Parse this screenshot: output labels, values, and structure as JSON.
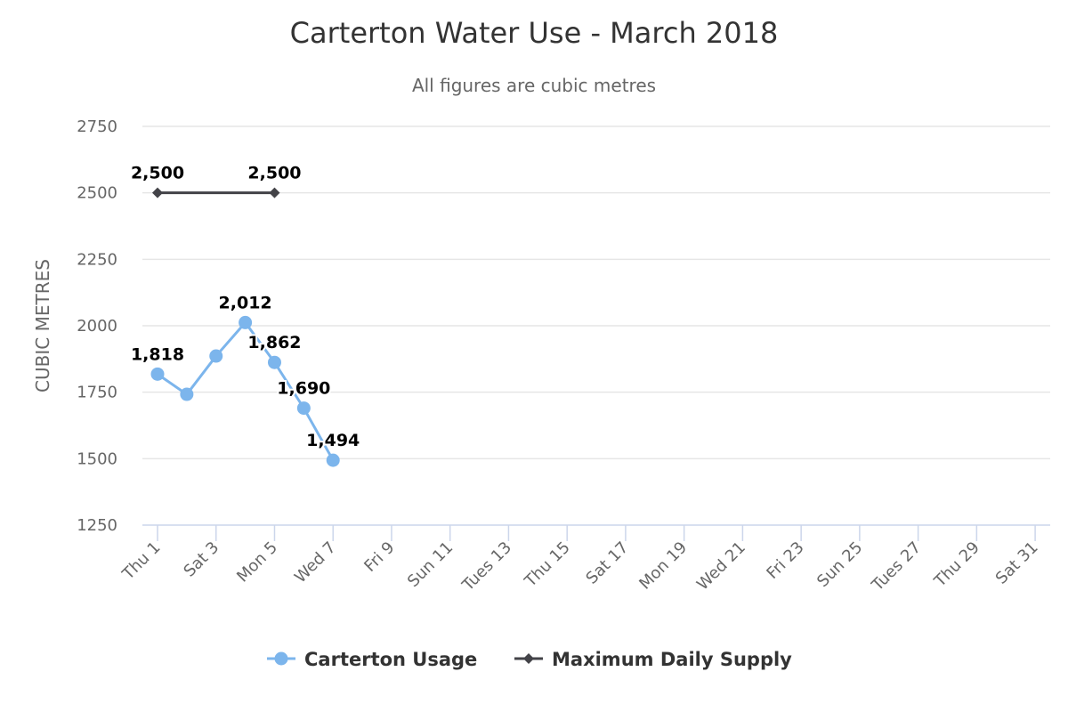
{
  "chart_data": {
    "type": "line",
    "title": "Carterton Water Use - March 2018",
    "subtitle": "All figures are cubic metres",
    "ylabel": "CUBIC METRES",
    "xlabel": "",
    "ylim": [
      1250,
      2750
    ],
    "yticks": [
      "1250",
      "1500",
      "1750",
      "2000",
      "2250",
      "2500",
      "2750"
    ],
    "x_days": [
      1,
      2,
      3,
      4,
      5,
      6,
      7,
      8,
      9,
      10,
      11,
      12,
      13,
      14,
      15,
      16,
      17,
      18,
      19,
      20,
      21,
      22,
      23,
      24,
      25,
      26,
      27,
      28,
      29,
      30,
      31
    ],
    "x_tick_labels": [
      {
        "day": 1,
        "label": "Thu 1"
      },
      {
        "day": 3,
        "label": "Sat 3"
      },
      {
        "day": 5,
        "label": "Mon 5"
      },
      {
        "day": 7,
        "label": "Wed 7"
      },
      {
        "day": 9,
        "label": "Fri 9"
      },
      {
        "day": 11,
        "label": "Sun 11"
      },
      {
        "day": 13,
        "label": "Tues 13"
      },
      {
        "day": 15,
        "label": "Thu 15"
      },
      {
        "day": 17,
        "label": "Sat 17"
      },
      {
        "day": 19,
        "label": "Mon 19"
      },
      {
        "day": 21,
        "label": "Wed 21"
      },
      {
        "day": 23,
        "label": "Fri 23"
      },
      {
        "day": 25,
        "label": "Sun 25"
      },
      {
        "day": 27,
        "label": "Tues 27"
      },
      {
        "day": 29,
        "label": "Thu 29"
      },
      {
        "day": 31,
        "label": "Sat 31"
      }
    ],
    "grid": true,
    "legend_position": "bottom",
    "series": [
      {
        "name": "Carterton Usage",
        "color": "#7cb5ec",
        "marker": "circle",
        "points": [
          {
            "day": 1,
            "value": 1818,
            "label": "1,818"
          },
          {
            "day": 2,
            "value": 1742
          },
          {
            "day": 3,
            "value": 1886
          },
          {
            "day": 4,
            "value": 2012,
            "label": "2,012"
          },
          {
            "day": 5,
            "value": 1862,
            "label": "1,862"
          },
          {
            "day": 6,
            "value": 1690,
            "label": "1,690"
          },
          {
            "day": 7,
            "value": 1494,
            "label": "1,494"
          }
        ]
      },
      {
        "name": "Maximum Daily Supply",
        "color": "#434348",
        "marker": "diamond",
        "points": [
          {
            "day": 1,
            "value": 2500,
            "label": "2,500"
          },
          {
            "day": 5,
            "value": 2500,
            "label": "2,500"
          }
        ]
      }
    ]
  }
}
